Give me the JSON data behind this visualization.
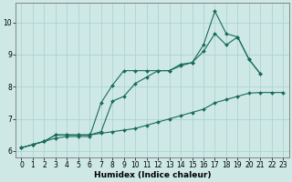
{
  "title": "",
  "xlabel": "Humidex (Indice chaleur)",
  "bg_color": "#cde8e5",
  "grid_color": "#aed4d0",
  "line_color": "#1a6b5a",
  "xlim": [
    -0.5,
    23.5
  ],
  "ylim": [
    5.8,
    10.6
  ],
  "xticks": [
    0,
    1,
    2,
    3,
    4,
    5,
    6,
    7,
    8,
    9,
    10,
    11,
    12,
    13,
    14,
    15,
    16,
    17,
    18,
    19,
    20,
    21,
    22,
    23
  ],
  "yticks": [
    6,
    7,
    8,
    9,
    10
  ],
  "series": [
    {
      "x": [
        0,
        1,
        2,
        3,
        4,
        5,
        6,
        7,
        8,
        9,
        10,
        11,
        12,
        13,
        14,
        15,
        16,
        17,
        18,
        19,
        20,
        21,
        22,
        23
      ],
      "y": [
        6.1,
        6.2,
        6.3,
        6.4,
        6.45,
        6.45,
        6.45,
        7.5,
        8.05,
        8.5,
        8.5,
        8.5,
        8.5,
        8.5,
        8.7,
        8.75,
        9.3,
        10.35,
        9.65,
        9.55,
        8.85,
        8.4,
        null,
        null
      ]
    },
    {
      "x": [
        0,
        1,
        2,
        3,
        4,
        5,
        6,
        7,
        8,
        9,
        10,
        11,
        12,
        13,
        14,
        15,
        16,
        17,
        18,
        19,
        20,
        21,
        22,
        23
      ],
      "y": [
        6.1,
        6.2,
        6.3,
        6.5,
        6.5,
        6.5,
        6.5,
        6.6,
        7.55,
        7.7,
        8.1,
        8.3,
        8.5,
        8.5,
        8.65,
        8.75,
        9.1,
        9.65,
        9.3,
        9.55,
        8.85,
        8.4,
        null,
        null
      ]
    },
    {
      "x": [
        0,
        1,
        2,
        3,
        4,
        5,
        6,
        7,
        8,
        9,
        10,
        11,
        12,
        13,
        14,
        15,
        16,
        17,
        18,
        19,
        20,
        21,
        22,
        23
      ],
      "y": [
        6.1,
        6.2,
        6.3,
        6.5,
        6.5,
        6.5,
        6.5,
        6.55,
        6.6,
        6.65,
        6.7,
        6.8,
        6.9,
        7.0,
        7.1,
        7.2,
        7.3,
        7.5,
        7.6,
        7.7,
        7.8,
        7.82,
        7.82,
        7.82
      ]
    }
  ],
  "xlabel_fontsize": 6.5,
  "tick_fontsize": 5.5,
  "marker_size": 2.0,
  "linewidth": 0.8
}
